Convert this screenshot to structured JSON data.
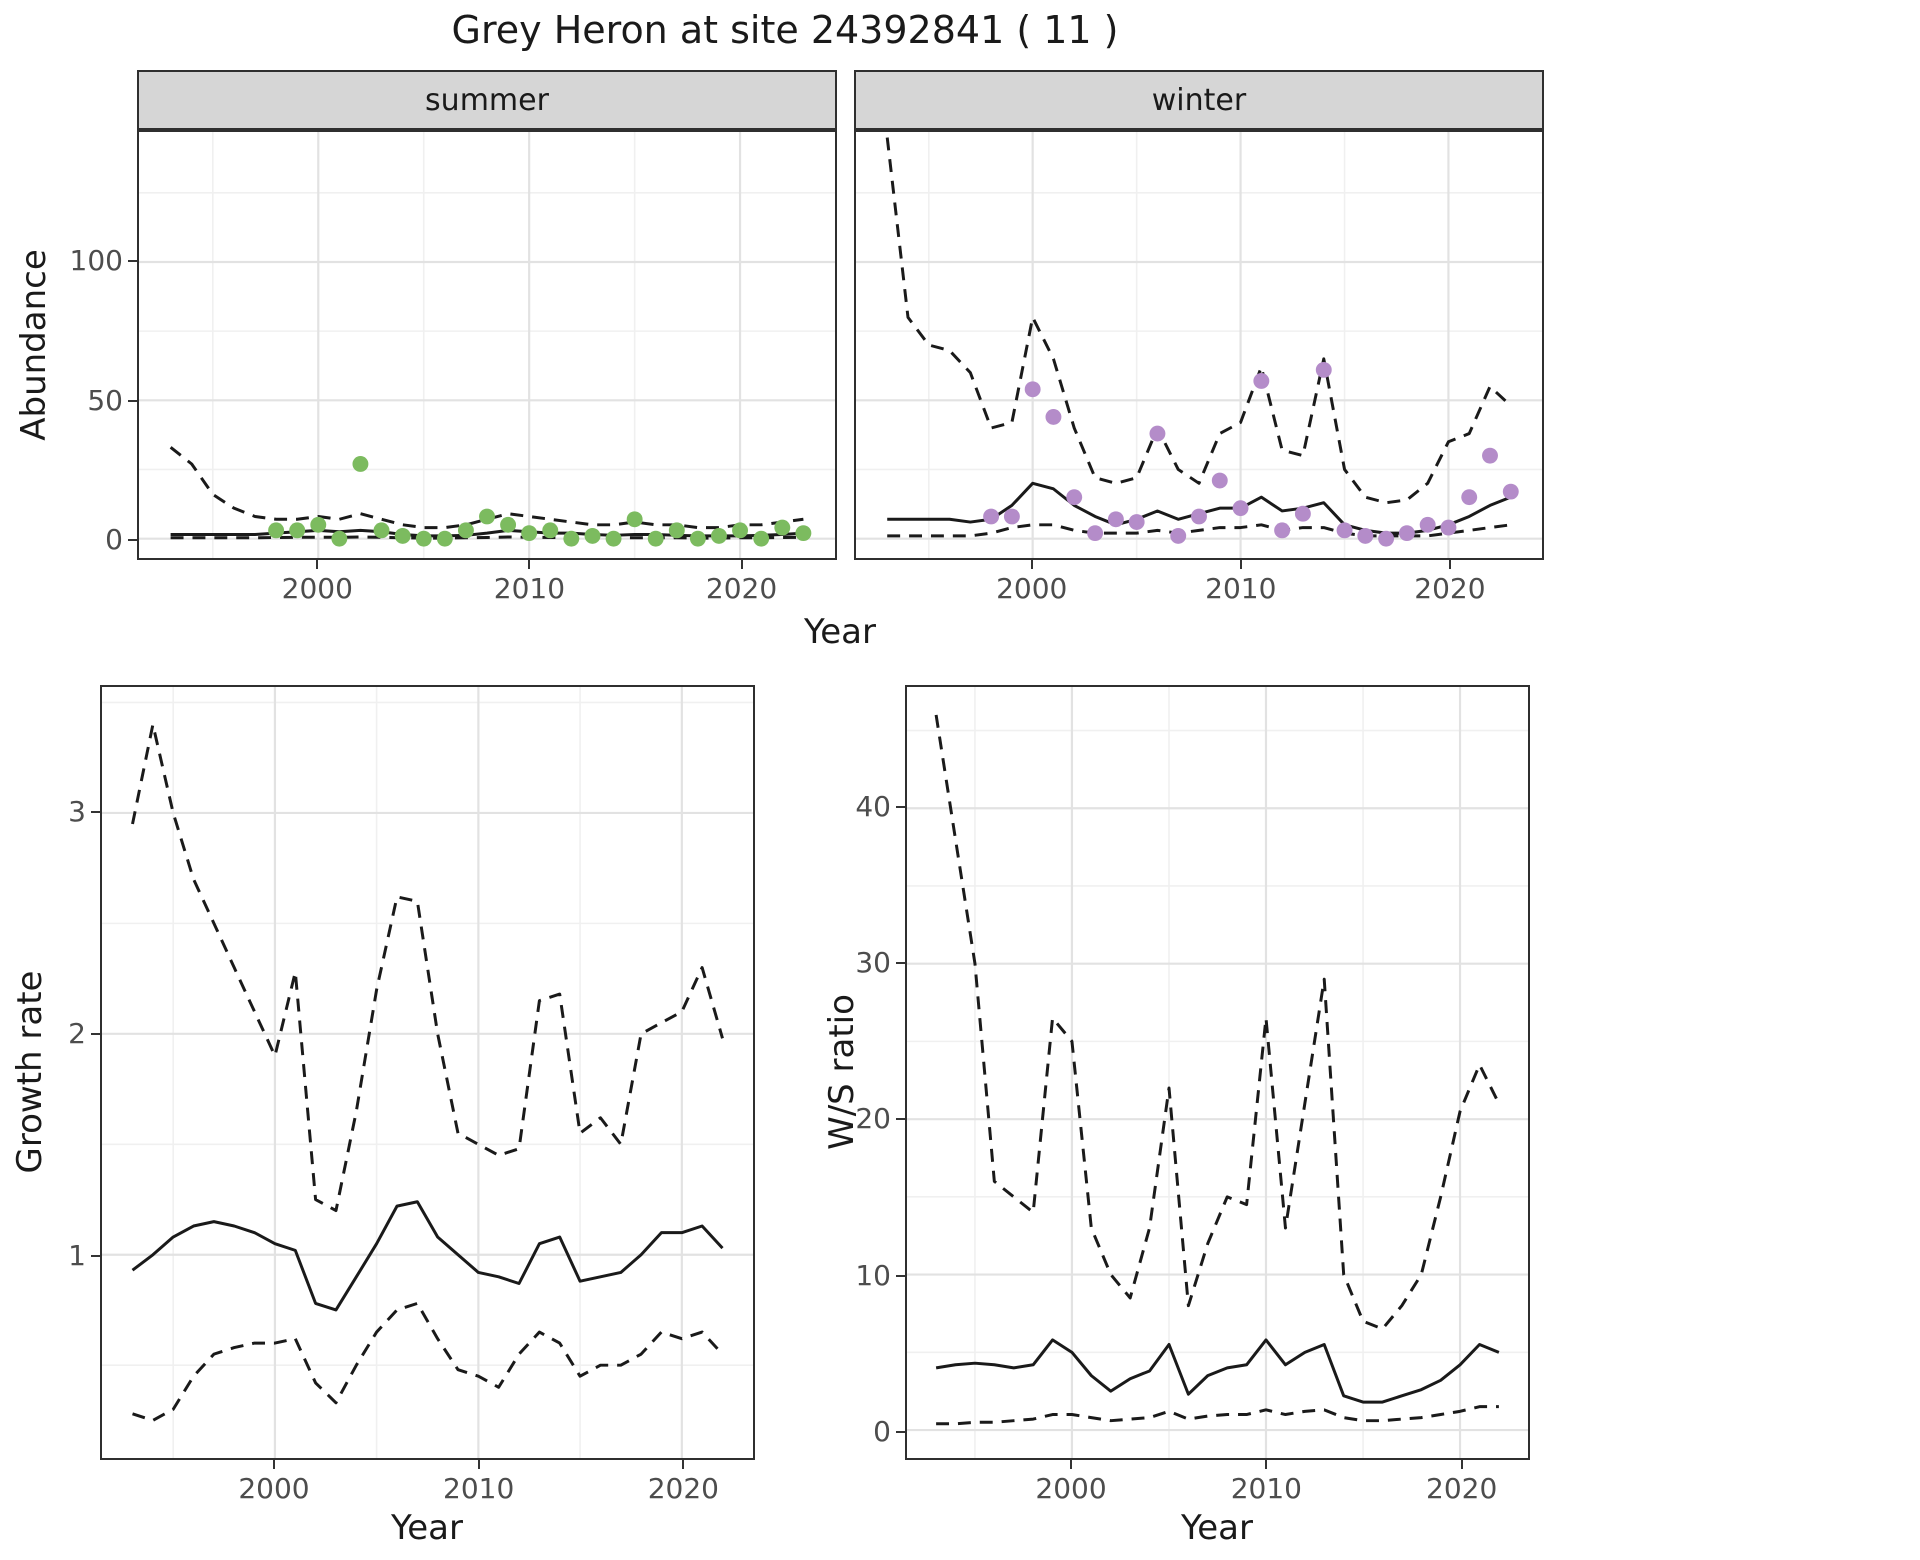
{
  "title": "Grey Heron at site 24392841 ( 11 )",
  "facets": {
    "summer": "summer",
    "winter": "winter"
  },
  "labels": {
    "year": "Year",
    "abundance": "Abundance",
    "growth_rate": "Growth rate",
    "ws_ratio": "W/S ratio"
  },
  "colors": {
    "line": "#1a1a1a",
    "summer_points": "#7cbb5f",
    "winter_points": "#b48cc9",
    "strip_background": "#d6d6d6",
    "grid_major": "#e2e2e2",
    "grid_minor": "#f0f0f0"
  },
  "chart_data": [
    {
      "id": "abundance-summer",
      "type": "line",
      "facet_label": "summer",
      "xlabel": "Year",
      "ylabel": "Abundance",
      "xlim": [
        1991.5,
        2024.5
      ],
      "ylim": [
        -7,
        147
      ],
      "x_ticks": [
        2000,
        2010,
        2020
      ],
      "x_minor": [
        1995,
        2005,
        2015
      ],
      "y_ticks": [
        0,
        50,
        100
      ],
      "y_minor": [
        25,
        75,
        125
      ],
      "x": [
        1993,
        1994,
        1995,
        1996,
        1997,
        1998,
        1999,
        2000,
        2001,
        2002,
        2003,
        2004,
        2005,
        2006,
        2007,
        2008,
        2009,
        2010,
        2011,
        2012,
        2013,
        2014,
        2015,
        2016,
        2017,
        2018,
        2019,
        2020,
        2021,
        2022,
        2023
      ],
      "series": [
        {
          "name": "fit",
          "style": "solid",
          "values": [
            1.5,
            1.5,
            1.5,
            1.5,
            1.5,
            2,
            2.5,
            3,
            2.5,
            3,
            2.5,
            1.5,
            1,
            1,
            1.2,
            2,
            3,
            2.5,
            2,
            2,
            1.5,
            1.2,
            1.5,
            1.5,
            1.2,
            1,
            1,
            1,
            1.2,
            1.5,
            2
          ]
        },
        {
          "name": "upper-ci",
          "style": "dashed",
          "values": [
            33,
            27,
            16,
            11,
            8,
            7,
            7,
            8,
            7,
            9,
            7,
            5,
            4,
            4,
            5,
            7,
            9,
            8,
            7,
            6,
            5,
            5,
            6,
            5,
            5,
            4,
            4,
            5,
            5,
            6,
            7
          ]
        },
        {
          "name": "lower-ci",
          "style": "dashed",
          "values": [
            0.3,
            0.3,
            0.3,
            0.3,
            0.3,
            0.4,
            0.5,
            0.5,
            0.5,
            0.6,
            0.5,
            0.3,
            0.2,
            0.2,
            0.3,
            0.4,
            0.6,
            0.5,
            0.4,
            0.4,
            0.3,
            0.3,
            0.3,
            0.3,
            0.3,
            0.2,
            0.2,
            0.3,
            0.3,
            0.4,
            0.5
          ]
        }
      ],
      "points": {
        "name": "observed-counts",
        "color": "#7cbb5f",
        "x": [
          1998,
          1999,
          2000,
          2001,
          2002,
          2003,
          2004,
          2005,
          2006,
          2007,
          2008,
          2009,
          2010,
          2011,
          2012,
          2013,
          2014,
          2015,
          2016,
          2017,
          2018,
          2019,
          2020,
          2021,
          2022,
          2023
        ],
        "y": [
          3,
          3,
          5,
          0,
          27,
          3,
          1,
          0,
          0,
          3,
          8,
          5,
          2,
          3,
          0,
          1,
          0,
          7,
          0,
          3,
          0,
          1,
          3,
          0,
          4,
          2
        ]
      }
    },
    {
      "id": "abundance-winter",
      "type": "line",
      "facet_label": "winter",
      "xlabel": "Year",
      "ylabel": "Abundance",
      "xlim": [
        1991.5,
        2024.5
      ],
      "ylim": [
        -7,
        147
      ],
      "x_ticks": [
        2000,
        2010,
        2020
      ],
      "x_minor": [
        1995,
        2005,
        2015
      ],
      "y_ticks": [
        0,
        50,
        100
      ],
      "y_minor": [
        25,
        75,
        125
      ],
      "x": [
        1993,
        1994,
        1995,
        1996,
        1997,
        1998,
        1999,
        2000,
        2001,
        2002,
        2003,
        2004,
        2005,
        2006,
        2007,
        2008,
        2009,
        2010,
        2011,
        2012,
        2013,
        2014,
        2015,
        2016,
        2017,
        2018,
        2019,
        2020,
        2021,
        2022,
        2023
      ],
      "series": [
        {
          "name": "fit",
          "style": "solid",
          "values": [
            7,
            7,
            7,
            7,
            6,
            7,
            12,
            20,
            18,
            12,
            8,
            5,
            7,
            10,
            7,
            9,
            11,
            11,
            15,
            10,
            11,
            13,
            5,
            3,
            2,
            2,
            3,
            5,
            8,
            12,
            15
          ]
        },
        {
          "name": "upper-ci",
          "style": "dashed",
          "values": [
            145,
            80,
            70,
            68,
            60,
            40,
            42,
            80,
            65,
            40,
            22,
            20,
            22,
            40,
            25,
            20,
            38,
            42,
            62,
            32,
            30,
            65,
            25,
            15,
            13,
            14,
            20,
            35,
            38,
            55,
            48
          ]
        },
        {
          "name": "lower-ci",
          "style": "dashed",
          "values": [
            1,
            1,
            1,
            1,
            1,
            2,
            4,
            5,
            5,
            3,
            2,
            2,
            2,
            3,
            2,
            3,
            4,
            4,
            5,
            3,
            4,
            4,
            2,
            1,
            1,
            1,
            1,
            2,
            3,
            4,
            5
          ]
        }
      ],
      "points": {
        "name": "observed-counts",
        "color": "#b48cc9",
        "x": [
          1998,
          1999,
          2000,
          2001,
          2002,
          2003,
          2004,
          2005,
          2006,
          2007,
          2008,
          2009,
          2010,
          2011,
          2012,
          2013,
          2014,
          2015,
          2016,
          2017,
          2018,
          2019,
          2020,
          2021,
          2022,
          2023
        ],
        "y": [
          8,
          8,
          54,
          44,
          15,
          2,
          7,
          6,
          38,
          1,
          8,
          21,
          11,
          57,
          3,
          9,
          61,
          3,
          1,
          0,
          2,
          5,
          4,
          15,
          30,
          17
        ]
      }
    },
    {
      "id": "growth-rate",
      "type": "line",
      "xlabel": "Year",
      "ylabel": "Growth rate",
      "xlim": [
        1991.5,
        2023.5
      ],
      "ylim": [
        0.08,
        3.57
      ],
      "x_ticks": [
        2000,
        2010,
        2020
      ],
      "x_minor": [
        1995,
        2005,
        2015
      ],
      "y_ticks": [
        1,
        2,
        3
      ],
      "y_minor": [
        0.5,
        1.5,
        2.5,
        3.5
      ],
      "x": [
        1993,
        1994,
        1995,
        1996,
        1997,
        1998,
        1999,
        2000,
        2001,
        2002,
        2003,
        2004,
        2005,
        2006,
        2007,
        2008,
        2009,
        2010,
        2011,
        2012,
        2013,
        2014,
        2015,
        2016,
        2017,
        2018,
        2019,
        2020,
        2021,
        2022
      ],
      "series": [
        {
          "name": "fit",
          "style": "solid",
          "values": [
            0.93,
            1.0,
            1.08,
            1.13,
            1.15,
            1.13,
            1.1,
            1.05,
            1.02,
            0.78,
            0.75,
            0.9,
            1.05,
            1.22,
            1.24,
            1.08,
            1.0,
            0.92,
            0.9,
            0.87,
            1.05,
            1.08,
            0.88,
            0.9,
            0.92,
            1.0,
            1.1,
            1.1,
            1.13,
            1.03
          ]
        },
        {
          "name": "upper-ci",
          "style": "dashed",
          "values": [
            2.95,
            3.4,
            3.0,
            2.7,
            2.5,
            2.3,
            2.1,
            1.9,
            2.28,
            1.25,
            1.2,
            1.65,
            2.2,
            2.62,
            2.6,
            2.0,
            1.55,
            1.5,
            1.45,
            1.48,
            2.15,
            2.18,
            1.55,
            1.62,
            1.5,
            2.0,
            2.05,
            2.1,
            2.3,
            1.98
          ]
        },
        {
          "name": "lower-ci",
          "style": "dashed",
          "values": [
            0.28,
            0.25,
            0.3,
            0.45,
            0.55,
            0.58,
            0.6,
            0.6,
            0.62,
            0.42,
            0.33,
            0.5,
            0.65,
            0.75,
            0.78,
            0.62,
            0.48,
            0.45,
            0.4,
            0.55,
            0.65,
            0.6,
            0.45,
            0.5,
            0.5,
            0.55,
            0.65,
            0.62,
            0.65,
            0.55
          ]
        }
      ]
    },
    {
      "id": "ws-ratio",
      "type": "line",
      "xlabel": "Year",
      "ylabel": "W/S ratio",
      "xlim": [
        1991.5,
        2023.5
      ],
      "ylim": [
        -1.8,
        47.8
      ],
      "x_ticks": [
        2000,
        2010,
        2020
      ],
      "x_minor": [
        1995,
        2005,
        2015
      ],
      "y_ticks": [
        0,
        10,
        20,
        30,
        40
      ],
      "y_minor": [
        5,
        15,
        25,
        35,
        45
      ],
      "x": [
        1993,
        1994,
        1995,
        1996,
        1997,
        1998,
        1999,
        2000,
        2001,
        2002,
        2003,
        2004,
        2005,
        2006,
        2007,
        2008,
        2009,
        2010,
        2011,
        2012,
        2013,
        2014,
        2015,
        2016,
        2017,
        2018,
        2019,
        2020,
        2021,
        2022
      ],
      "series": [
        {
          "name": "fit",
          "style": "solid",
          "values": [
            4.0,
            4.2,
            4.3,
            4.2,
            4.0,
            4.2,
            5.8,
            5.0,
            3.5,
            2.5,
            3.3,
            3.8,
            5.5,
            2.3,
            3.5,
            4.0,
            4.2,
            5.8,
            4.2,
            5.0,
            5.5,
            2.2,
            1.8,
            1.8,
            2.2,
            2.6,
            3.2,
            4.2,
            5.5,
            5.0
          ]
        },
        {
          "name": "upper-ci",
          "style": "dashed",
          "values": [
            46,
            38,
            30,
            16,
            15,
            14,
            26.5,
            25,
            13,
            10,
            8.5,
            13,
            22,
            8,
            12,
            15,
            14.5,
            26.5,
            13,
            21,
            29,
            10,
            7,
            6.5,
            8,
            10,
            15,
            20.5,
            23.5,
            21
          ]
        },
        {
          "name": "lower-ci",
          "style": "dashed",
          "values": [
            0.4,
            0.4,
            0.5,
            0.5,
            0.6,
            0.7,
            1.0,
            1.0,
            0.8,
            0.6,
            0.7,
            0.8,
            1.2,
            0.7,
            0.9,
            1.0,
            1.0,
            1.3,
            1.0,
            1.2,
            1.3,
            0.8,
            0.6,
            0.6,
            0.7,
            0.8,
            1.0,
            1.2,
            1.5,
            1.5
          ]
        }
      ]
    }
  ]
}
